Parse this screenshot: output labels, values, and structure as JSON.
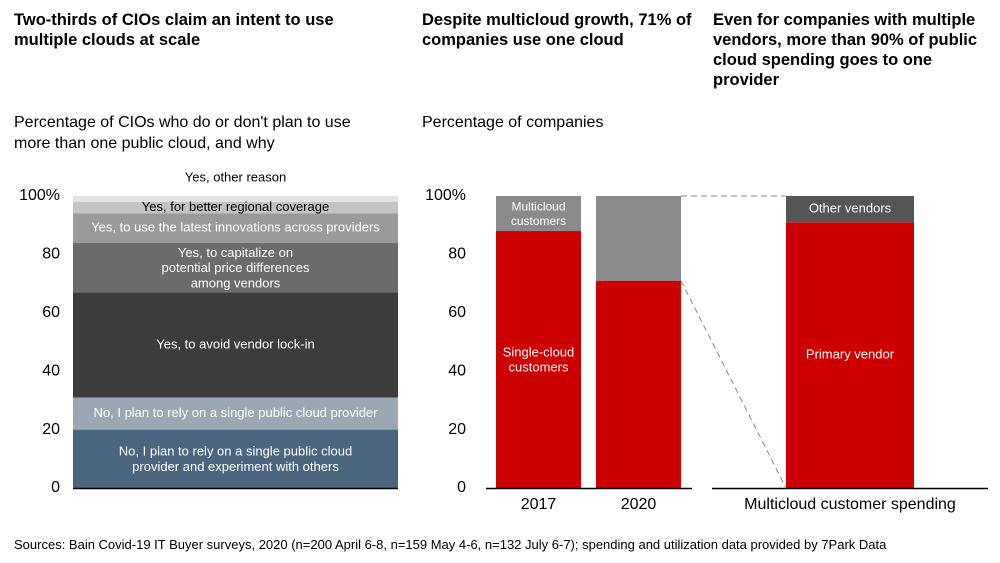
{
  "panels": [
    {
      "title": "Two-thirds of CIOs claim an intent to use multiple clouds at scale",
      "subtitle": "Percentage of CIOs who do or don't plan to use more than one public cloud, and why"
    },
    {
      "title": "Despite multicloud growth, 71% of companies use one cloud",
      "subtitle": "Percentage of companies"
    },
    {
      "title": "Even for companies with multiple vendors, more than 90% of public cloud spending goes to one provider",
      "subtitle": ""
    }
  ],
  "sources": "Sources: Bain Covid-19 IT Buyer surveys, 2020 (n=200 April 6-8, n=159 May 4-6, n=132 July 6-7); spending and utilization data provided by 7Park Data",
  "chart_data": [
    {
      "type": "bar",
      "stacked": true,
      "ylim": [
        0,
        100
      ],
      "yticks": [
        "0",
        "20",
        "40",
        "60",
        "80",
        "100%"
      ],
      "segments": [
        {
          "label": "No, I plan to rely on a single public cloud provider and experiment with others",
          "value": 20,
          "color": "#4a6580",
          "text_color": "#ffffff"
        },
        {
          "label": "No, I plan to rely on a single public cloud provider",
          "value": 11,
          "color": "#9aa8b6",
          "text_color": "#ffffff"
        },
        {
          "label": "Yes, to avoid vendor lock-in",
          "value": 36,
          "color": "#3c3c3c",
          "text_color": "#ffffff"
        },
        {
          "label": "Yes, to capitalize on potential price differences among vendors",
          "value": 17,
          "color": "#6b6b6d",
          "text_color": "#ffffff"
        },
        {
          "label": "Yes, to use the latest innovations across providers",
          "value": 10,
          "color": "#9a9a9c",
          "text_color": "#ffffff"
        },
        {
          "label": "Yes, for better regional coverage",
          "value": 4,
          "color": "#c4c4c6",
          "text_color": "#000000"
        },
        {
          "label": "Yes, other reason",
          "value": 2,
          "color": "#e3e3e5",
          "text_color": "#000000"
        }
      ]
    },
    {
      "type": "bar",
      "stacked": true,
      "ylim": [
        0,
        100
      ],
      "yticks": [
        "0",
        "20",
        "40",
        "60",
        "80",
        "100%"
      ],
      "categories": [
        "2017",
        "2020"
      ],
      "series": [
        {
          "name": "Single-cloud customers",
          "values": [
            88,
            71
          ],
          "color": "#cc0000"
        },
        {
          "name": "Multicloud customers",
          "values": [
            12,
            29
          ],
          "color": "#8a8a8c"
        }
      ]
    },
    {
      "type": "bar",
      "stacked": true,
      "ylim": [
        0,
        100
      ],
      "categories": [
        "Multicloud customer spending"
      ],
      "series": [
        {
          "name": "Primary vendor",
          "values": [
            91
          ],
          "color": "#cc0000"
        },
        {
          "name": "Other vendors",
          "values": [
            9
          ],
          "color": "#555557"
        }
      ]
    }
  ]
}
